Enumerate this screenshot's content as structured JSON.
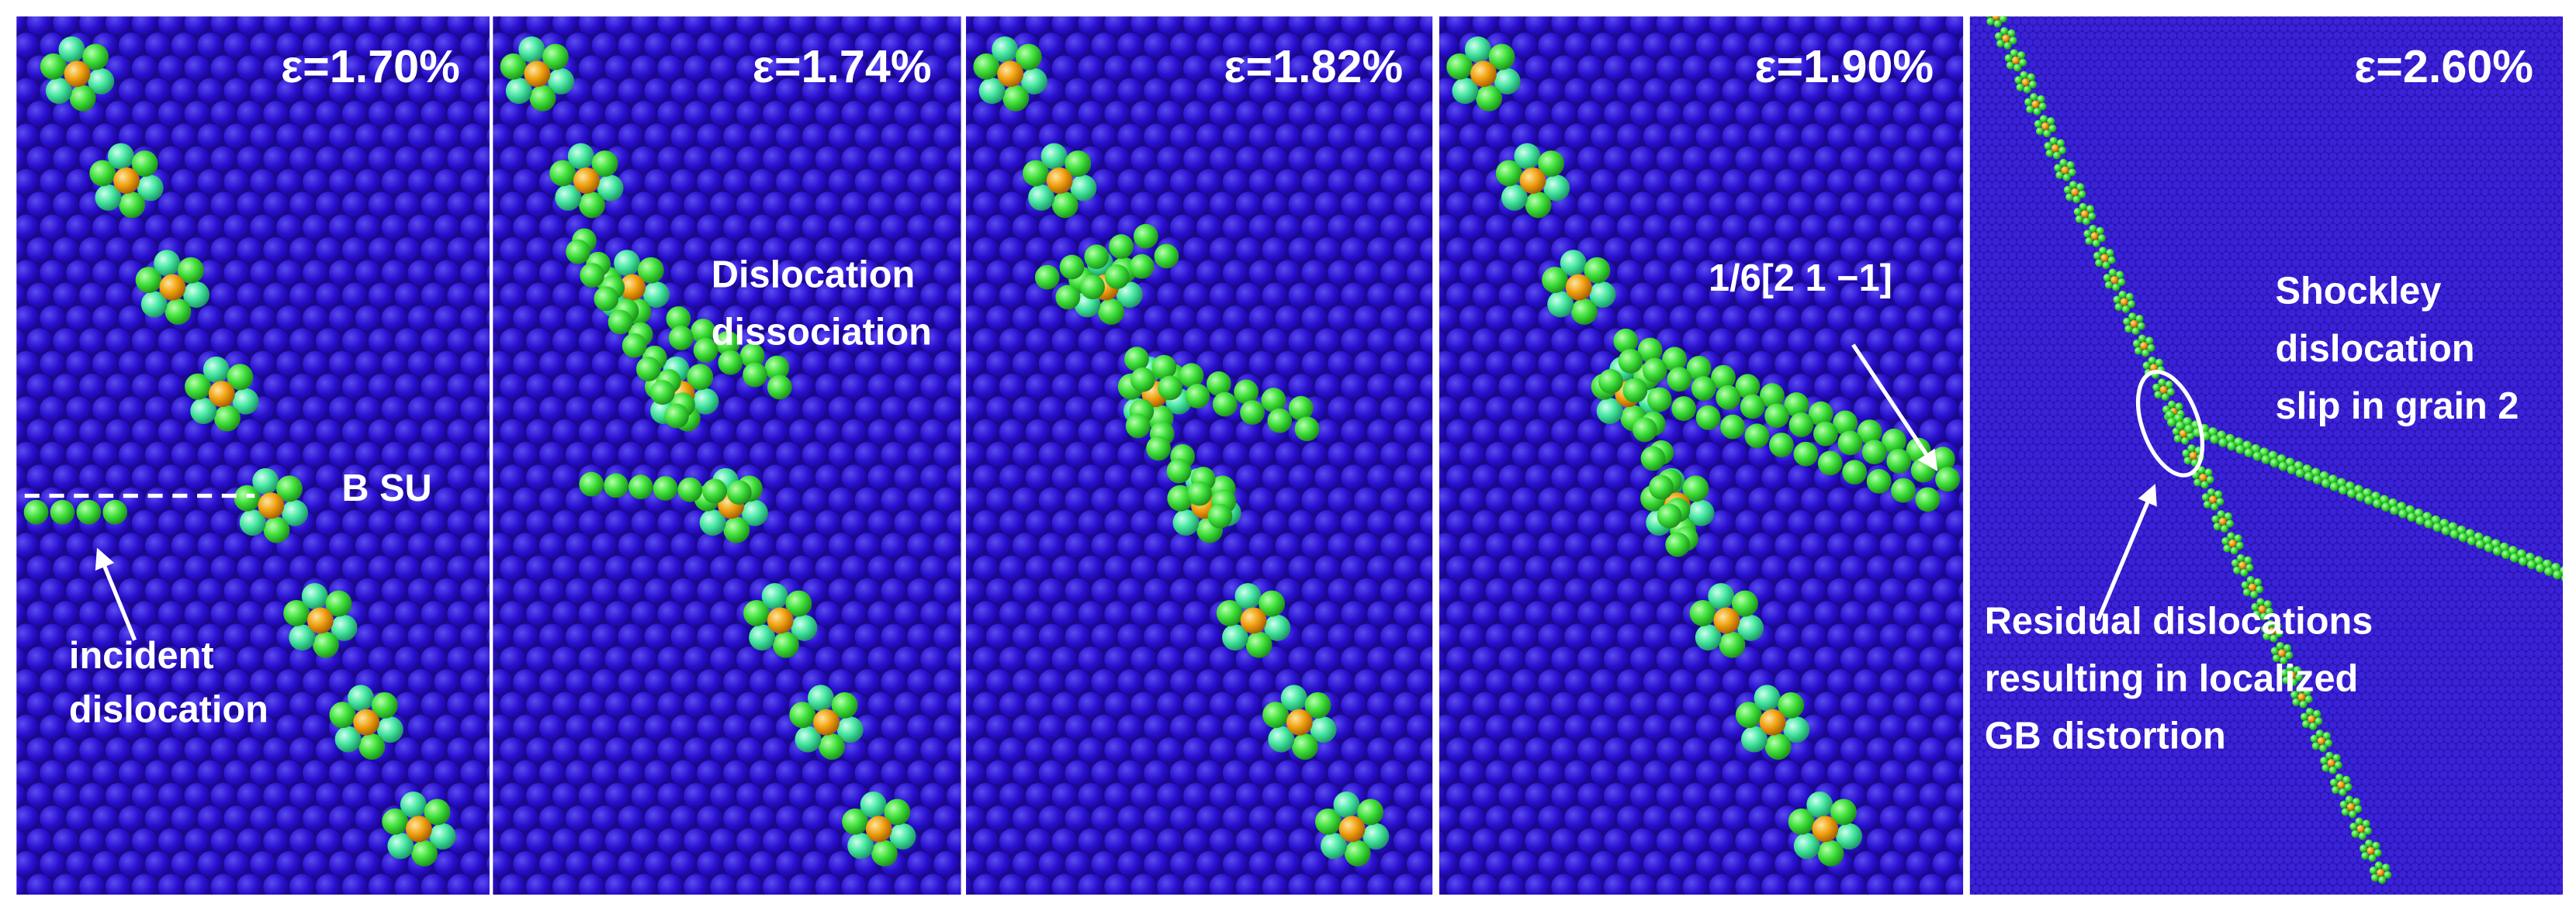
{
  "panels": [
    {
      "strain": "ε=1.70%",
      "annotations": [
        {
          "lines": [
            "B SU"
          ]
        },
        {
          "lines": [
            "incident",
            "dislocation"
          ]
        }
      ]
    },
    {
      "strain": "ε=1.74%",
      "annotations": [
        {
          "lines": [
            "Dislocation",
            "dissociation"
          ]
        }
      ]
    },
    {
      "strain": "ε=1.82%",
      "annotations": []
    },
    {
      "strain": "ε=1.90%",
      "annotations": [
        {
          "lines": [
            "1/6[2 1 −1]"
          ]
        }
      ]
    },
    {
      "strain": "ε=2.60%",
      "annotations": [
        {
          "lines": [
            "Shockley",
            "dislocation",
            "slip in grain 2"
          ]
        },
        {
          "lines": [
            "Residual dislocations",
            "resulting in localized",
            "GB distortion"
          ]
        }
      ]
    }
  ]
}
